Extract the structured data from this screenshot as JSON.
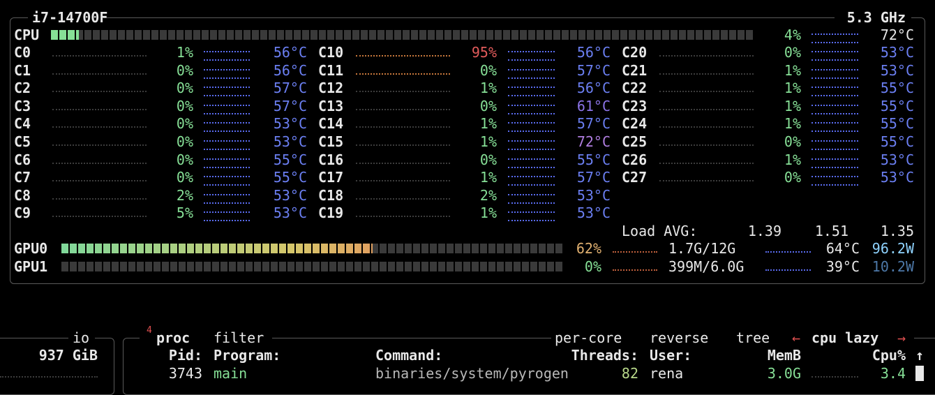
{
  "cpu": {
    "title": "i7-14700F",
    "frequency": "5.3 GHz",
    "total": {
      "label": "CPU",
      "percent": "4%",
      "temp": "72°C"
    },
    "cores": [
      {
        "name": "C0",
        "percent": "1%",
        "temp": "56°C"
      },
      {
        "name": "C1",
        "percent": "0%",
        "temp": "56°C"
      },
      {
        "name": "C2",
        "percent": "0%",
        "temp": "57°C"
      },
      {
        "name": "C3",
        "percent": "0%",
        "temp": "57°C"
      },
      {
        "name": "C4",
        "percent": "0%",
        "temp": "53°C"
      },
      {
        "name": "C5",
        "percent": "0%",
        "temp": "53°C"
      },
      {
        "name": "C6",
        "percent": "0%",
        "temp": "55°C"
      },
      {
        "name": "C7",
        "percent": "0%",
        "temp": "55°C"
      },
      {
        "name": "C8",
        "percent": "2%",
        "temp": "53°C"
      },
      {
        "name": "C9",
        "percent": "5%",
        "temp": "53°C"
      },
      {
        "name": "C10",
        "percent": "95%",
        "temp": "56°C",
        "percent_color": "#e25b5b"
      },
      {
        "name": "C11",
        "percent": "0%",
        "temp": "57°C"
      },
      {
        "name": "C12",
        "percent": "1%",
        "temp": "56°C"
      },
      {
        "name": "C13",
        "percent": "0%",
        "temp": "61°C",
        "temp_color": "#8c74e8"
      },
      {
        "name": "C14",
        "percent": "1%",
        "temp": "57°C"
      },
      {
        "name": "C15",
        "percent": "1%",
        "temp": "72°C",
        "temp_color": "#b07ee0"
      },
      {
        "name": "C16",
        "percent": "0%",
        "temp": "55°C"
      },
      {
        "name": "C17",
        "percent": "1%",
        "temp": "57°C"
      },
      {
        "name": "C18",
        "percent": "2%",
        "temp": "53°C"
      },
      {
        "name": "C19",
        "percent": "1%",
        "temp": "53°C"
      },
      {
        "name": "C20",
        "percent": "0%",
        "temp": "53°C"
      },
      {
        "name": "C21",
        "percent": "1%",
        "temp": "53°C"
      },
      {
        "name": "C22",
        "percent": "1%",
        "temp": "55°C"
      },
      {
        "name": "C23",
        "percent": "1%",
        "temp": "55°C"
      },
      {
        "name": "C24",
        "percent": "1%",
        "temp": "55°C"
      },
      {
        "name": "C25",
        "percent": "0%",
        "temp": "55°C"
      },
      {
        "name": "C26",
        "percent": "1%",
        "temp": "53°C"
      },
      {
        "name": "C27",
        "percent": "0%",
        "temp": "53°C"
      }
    ],
    "load": {
      "label": "Load AVG:",
      "values": [
        "1.39",
        "1.51",
        "1.35"
      ]
    },
    "gpus": [
      {
        "name": "GPU0",
        "percent": "62%",
        "memory": "1.7G/12G",
        "temp": "64°C",
        "power": "96.2W",
        "power_color": "#8fd3ff"
      },
      {
        "name": "GPU1",
        "percent": "0%",
        "memory": "399M/6.0G",
        "temp": "39°C",
        "power": "10.2W",
        "power_color": "#4d78a8"
      }
    ]
  },
  "io": {
    "title": "io",
    "value": "937 GiB"
  },
  "proc": {
    "count": "4",
    "title": "proc",
    "filter": "filter",
    "options": [
      "per-core",
      "reverse",
      "tree"
    ],
    "prev": "←",
    "sort": "cpu lazy",
    "next": "→",
    "headers": [
      "Pid:",
      "Program:",
      "Command:",
      "Threads:",
      "User:",
      "MemB",
      "Cpu%",
      "↑"
    ],
    "rows": [
      [
        "3743",
        "main",
        "binaries/system/pyrogen",
        "82",
        "rena",
        "3.0G",
        "3.4"
      ]
    ]
  }
}
